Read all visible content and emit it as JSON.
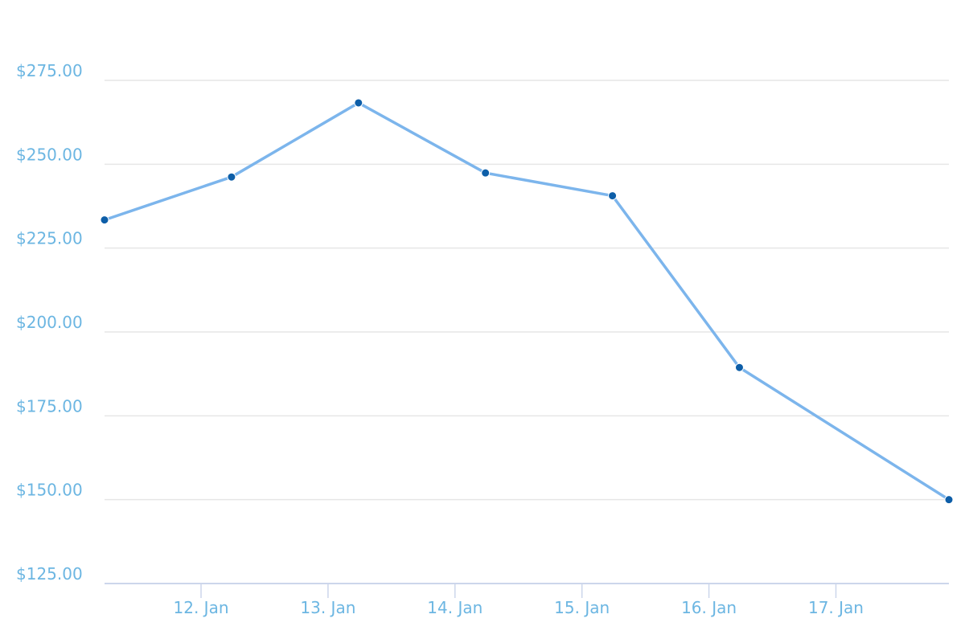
{
  "chart_data": {
    "type": "line",
    "x": [
      11.24,
      12.24,
      13.24,
      14.24,
      15.24,
      16.24,
      17.89
    ],
    "series": [
      {
        "color": "#7cb5ec",
        "marker_color": "#0d5ea8",
        "values": [
          233.4,
          246.2,
          268.3,
          247.4,
          240.6,
          189.4,
          150.0
        ]
      }
    ],
    "xlim": [
      11.24,
      17.89
    ],
    "xticks": [
      {
        "value": 12,
        "label": "12. Jan"
      },
      {
        "value": 13,
        "label": "13. Jan"
      },
      {
        "value": 14,
        "label": "14. Jan"
      },
      {
        "value": 15,
        "label": "15. Jan"
      },
      {
        "value": 16,
        "label": "16. Jan"
      },
      {
        "value": 17,
        "label": "17. Jan"
      }
    ],
    "ylim": [
      125,
      275
    ],
    "yticks": [
      {
        "value": 125,
        "label": "$125.00"
      },
      {
        "value": 150,
        "label": "$150.00"
      },
      {
        "value": 175,
        "label": "$175.00"
      },
      {
        "value": 200,
        "label": "$200.00"
      },
      {
        "value": 225,
        "label": "$225.00"
      },
      {
        "value": 250,
        "label": "$250.00"
      },
      {
        "value": 275,
        "label": "$275.00"
      }
    ],
    "grid": true
  }
}
